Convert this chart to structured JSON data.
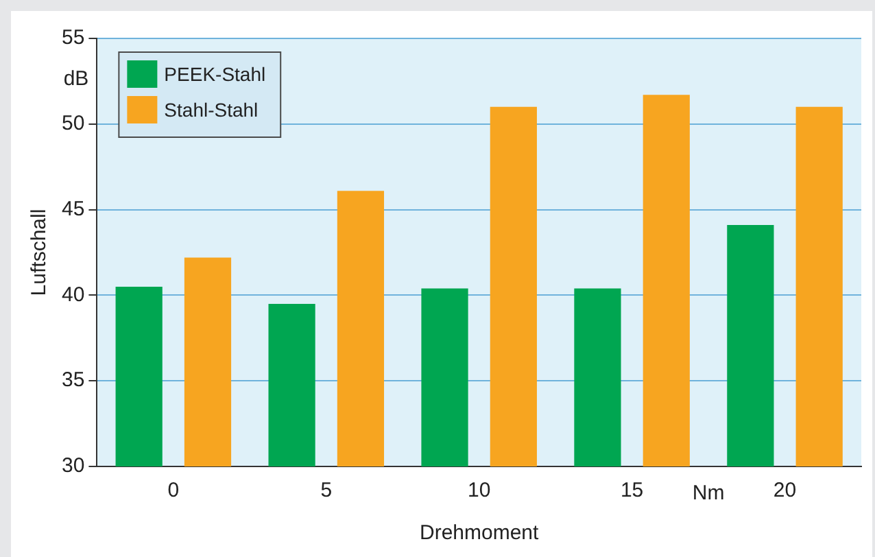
{
  "chart_data": {
    "type": "bar",
    "xlabel": "Drehmoment",
    "ylabel": "Luftschall",
    "categories": [
      "0",
      "5",
      "10",
      "15",
      "20"
    ],
    "series": [
      {
        "name": "PEEK-Stahl",
        "color": "#00a651",
        "values": [
          40.5,
          39.5,
          40.4,
          40.4,
          44.1
        ]
      },
      {
        "name": "Stahl-Stahl",
        "color": "#f7a520",
        "values": [
          42.2,
          46.1,
          51.0,
          51.7,
          51.0
        ]
      }
    ],
    "ylim": [
      30,
      55
    ],
    "yticks": [
      30,
      35,
      40,
      45,
      50,
      55
    ],
    "grid": "y",
    "legend": "top left",
    "annotations": [
      "dB",
      "Nm"
    ]
  }
}
